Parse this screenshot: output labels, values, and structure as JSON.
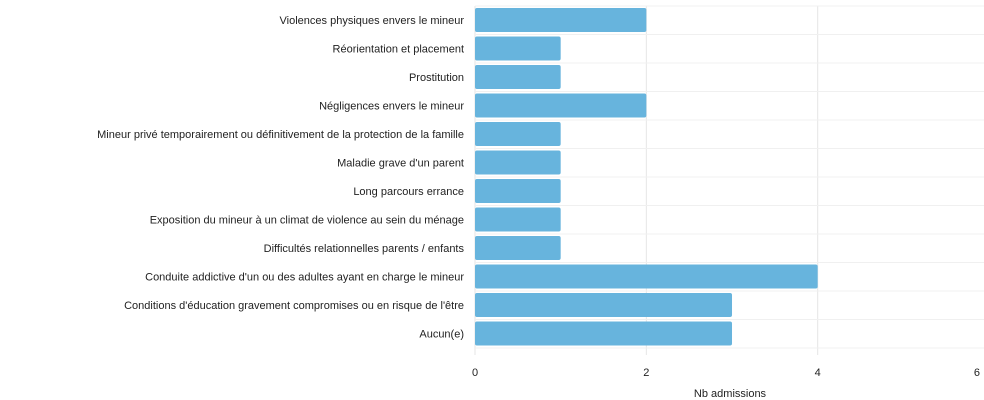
{
  "chart_data": {
    "type": "bar",
    "orientation": "horizontal",
    "categories": [
      "Violences physiques envers le mineur",
      "Réorientation et placement",
      "Prostitution",
      "Négligences envers le mineur",
      "Mineur privé temporairement ou définitivement de la protection de la famille",
      "Maladie grave d'un parent",
      "Long parcours errance",
      "Exposition du mineur à un climat de violence au sein du ménage",
      "Difficultés relationnelles parents / enfants",
      "Conduite addictive d'un ou des adultes ayant en charge le mineur",
      "Conditions d'éducation gravement compromises ou en risque de l'être",
      "Aucun(e)"
    ],
    "values": [
      2,
      1,
      1,
      2,
      1,
      1,
      1,
      1,
      1,
      4,
      3,
      3
    ],
    "xlabel": "Nb admissions",
    "ylabel": "",
    "xlim": [
      0,
      6
    ],
    "xticks": [
      "0",
      "2",
      "4",
      "6"
    ],
    "grid": true,
    "bar_color": "#67b4dd",
    "grid_color": "#e6e6e6"
  }
}
